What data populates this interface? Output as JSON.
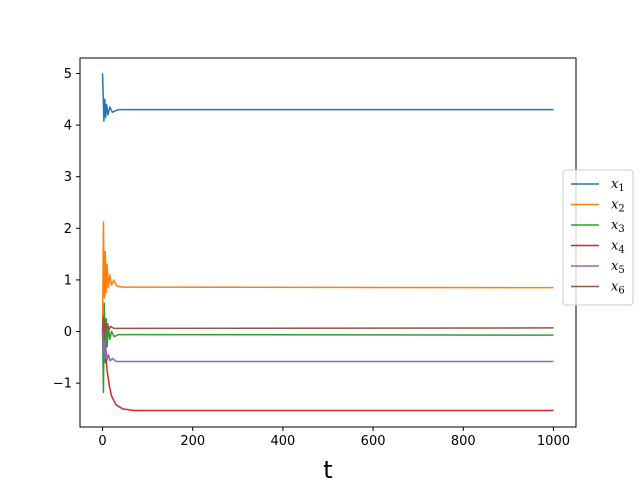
{
  "chart_data": {
    "type": "line",
    "xlabel": "t",
    "ylabel": "",
    "xlim": [
      -50,
      1050
    ],
    "ylim": [
      -1.85,
      5.3
    ],
    "xticks": [
      0,
      200,
      400,
      600,
      800,
      1000
    ],
    "yticks": [
      -1,
      0,
      1,
      2,
      3,
      4,
      5
    ],
    "xtick_labels": [
      "0",
      "200",
      "400",
      "600",
      "800",
      "1000"
    ],
    "ytick_labels": [
      "−1",
      "0",
      "1",
      "2",
      "3",
      "4",
      "5"
    ],
    "grid": false,
    "legend_position": "right, outside plot",
    "series": [
      {
        "name": "x",
        "sub": "1",
        "color": "#1f77b4",
        "start": 5.0,
        "final": 4.3,
        "transient": [
          [
            0,
            5.0
          ],
          [
            3,
            4.08
          ],
          [
            5,
            4.5
          ],
          [
            7,
            4.15
          ],
          [
            9,
            4.4
          ],
          [
            12,
            4.2
          ],
          [
            16,
            4.35
          ],
          [
            22,
            4.25
          ],
          [
            35,
            4.3
          ],
          [
            1000,
            4.3
          ]
        ]
      },
      {
        "name": "x",
        "sub": "2",
        "color": "#ff7f0e",
        "start": 0.0,
        "final": 0.85,
        "transient": [
          [
            0,
            0.0
          ],
          [
            2,
            2.12
          ],
          [
            4,
            0.65
          ],
          [
            6,
            1.55
          ],
          [
            8,
            0.75
          ],
          [
            10,
            1.3
          ],
          [
            13,
            0.85
          ],
          [
            16,
            1.1
          ],
          [
            20,
            0.9
          ],
          [
            25,
            1.0
          ],
          [
            32,
            0.88
          ],
          [
            45,
            0.86
          ],
          [
            1000,
            0.85
          ]
        ]
      },
      {
        "name": "x",
        "sub": "3",
        "color": "#2ca02c",
        "start": 0.0,
        "final": -0.07,
        "transient": [
          [
            0,
            0.0
          ],
          [
            2,
            -1.18
          ],
          [
            4,
            0.55
          ],
          [
            6,
            -0.6
          ],
          [
            8,
            0.25
          ],
          [
            10,
            -0.3
          ],
          [
            13,
            0.1
          ],
          [
            16,
            -0.15
          ],
          [
            20,
            0.0
          ],
          [
            26,
            -0.1
          ],
          [
            35,
            -0.06
          ],
          [
            1000,
            -0.07
          ]
        ]
      },
      {
        "name": "x",
        "sub": "4",
        "color": "#d62728",
        "start": 0.0,
        "final": -1.53,
        "transient": [
          [
            0,
            0.0
          ],
          [
            3,
            -0.2
          ],
          [
            6,
            -0.35
          ],
          [
            10,
            -0.75
          ],
          [
            15,
            -1.05
          ],
          [
            20,
            -1.25
          ],
          [
            30,
            -1.42
          ],
          [
            45,
            -1.5
          ],
          [
            70,
            -1.53
          ],
          [
            1000,
            -1.53
          ]
        ]
      },
      {
        "name": "x",
        "sub": "5",
        "color": "#9467bd",
        "start": 0.0,
        "final": -0.58,
        "transient": [
          [
            0,
            0.0
          ],
          [
            2,
            -0.42
          ],
          [
            4,
            -0.2
          ],
          [
            6,
            -0.52
          ],
          [
            8,
            -0.35
          ],
          [
            10,
            -0.56
          ],
          [
            13,
            -0.45
          ],
          [
            17,
            -0.57
          ],
          [
            22,
            -0.52
          ],
          [
            30,
            -0.58
          ],
          [
            1000,
            -0.58
          ]
        ]
      },
      {
        "name": "x",
        "sub": "6",
        "color": "#8c564b",
        "start": 0.0,
        "final": 0.07,
        "transient": [
          [
            0,
            0.0
          ],
          [
            2,
            0.3
          ],
          [
            4,
            -0.1
          ],
          [
            6,
            0.22
          ],
          [
            8,
            0.0
          ],
          [
            11,
            0.15
          ],
          [
            14,
            0.03
          ],
          [
            18,
            0.1
          ],
          [
            25,
            0.06
          ],
          [
            1000,
            0.07
          ]
        ]
      }
    ]
  }
}
